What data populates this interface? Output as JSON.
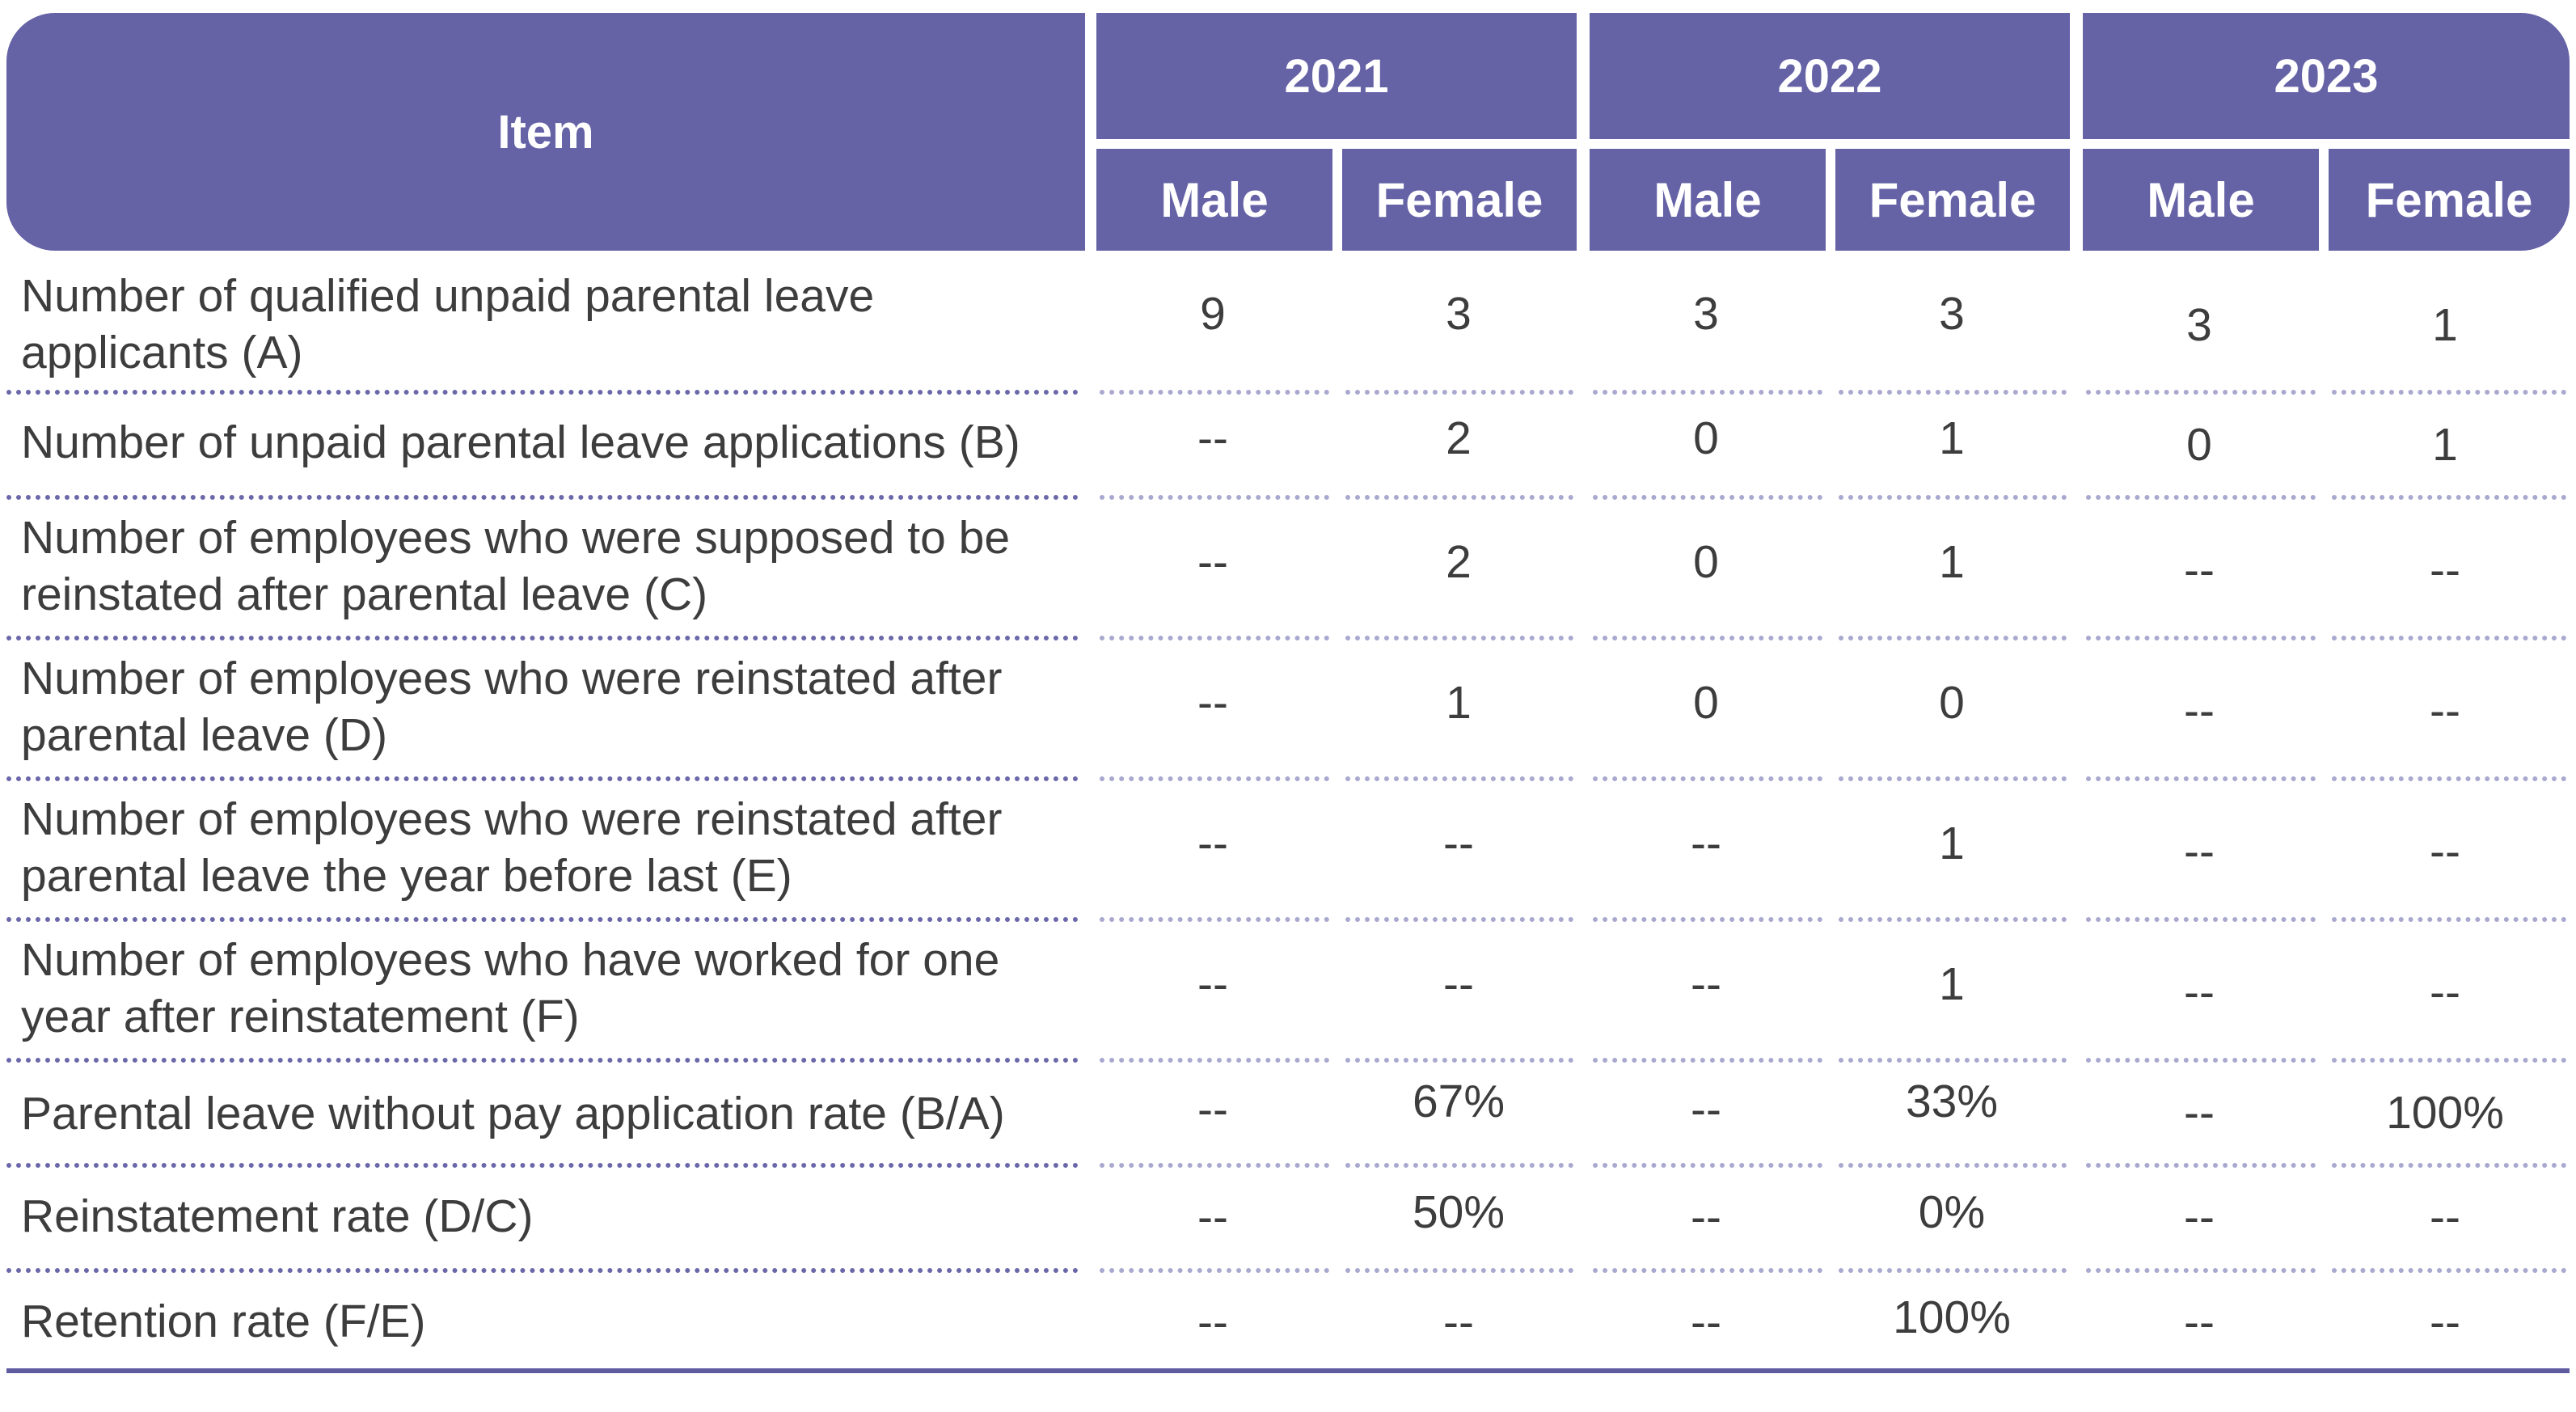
{
  "table": {
    "header": {
      "item": "Item",
      "years": [
        "2021",
        "2022",
        "2023"
      ],
      "sexes": [
        "Male",
        "Female",
        "Male",
        "Female",
        "Male",
        "Female"
      ]
    },
    "rows": [
      {
        "item": "Number of qualified unpaid parental leave applicants (A)",
        "values": [
          "9",
          "3",
          "3",
          "3",
          "3",
          "1"
        ]
      },
      {
        "item": "Number of unpaid parental leave applications (B)",
        "values": [
          "--",
          "2",
          "0",
          "1",
          "0",
          "1"
        ]
      },
      {
        "item": "Number of employees who were supposed to be reinstated after parental leave (C)",
        "values": [
          "--",
          "2",
          "0",
          "1",
          "--",
          "--"
        ]
      },
      {
        "item": "Number of employees who were reinstated after parental leave (D)",
        "values": [
          "--",
          "1",
          "0",
          "0",
          "--",
          "--"
        ]
      },
      {
        "item": "Number of employees who were reinstated after parental leave the year before last (E)",
        "values": [
          "--",
          "--",
          "--",
          "1",
          "--",
          "--"
        ]
      },
      {
        "item": "Number of employees who have worked for one year after reinstatement (F)",
        "values": [
          "--",
          "--",
          "--",
          "1",
          "--",
          "--"
        ]
      },
      {
        "item": "Parental leave without pay application rate (B/A)",
        "values": [
          "--",
          "67%",
          "--",
          "33%",
          "--",
          "100%"
        ]
      },
      {
        "item": "Reinstatement rate (D/C)",
        "values": [
          "--",
          "50%",
          "--",
          "0%",
          "--",
          "--"
        ]
      },
      {
        "item": "Retention rate (F/E)",
        "values": [
          "--",
          "--",
          "--",
          "100%",
          "--",
          "--"
        ]
      }
    ]
  },
  "colors": {
    "header_bg": "#6562a6",
    "header_text": "#ffffff",
    "dotted_rule": "#6b68aa",
    "bottom_rule": "#5e5b9f"
  }
}
